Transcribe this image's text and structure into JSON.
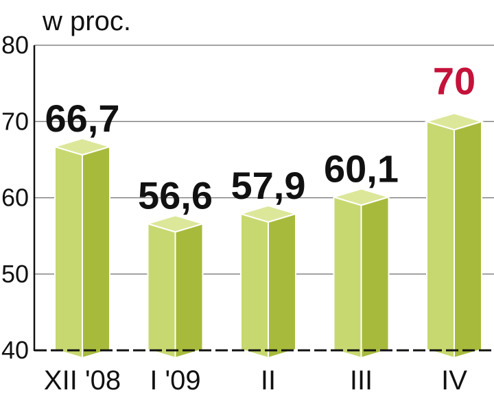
{
  "chart_data": {
    "type": "bar",
    "unit_label": "w proc.",
    "categories": [
      "XII '08",
      "I '09",
      "II",
      "III",
      "IV"
    ],
    "values": [
      66.7,
      56.6,
      57.9,
      60.1,
      70
    ],
    "value_labels": [
      "66,7",
      "56,6",
      "57,9",
      "60,1",
      "70"
    ],
    "highlight_index": 4,
    "ylim": [
      40,
      80
    ],
    "yticks": [
      "40",
      "50",
      "60",
      "70",
      "80"
    ],
    "grid": true,
    "colors": {
      "bar_front": "#c8d870",
      "bar_side": "#a8ba3c",
      "bar_top": "#dde79a",
      "highlight_label": "#c4123a"
    }
  }
}
